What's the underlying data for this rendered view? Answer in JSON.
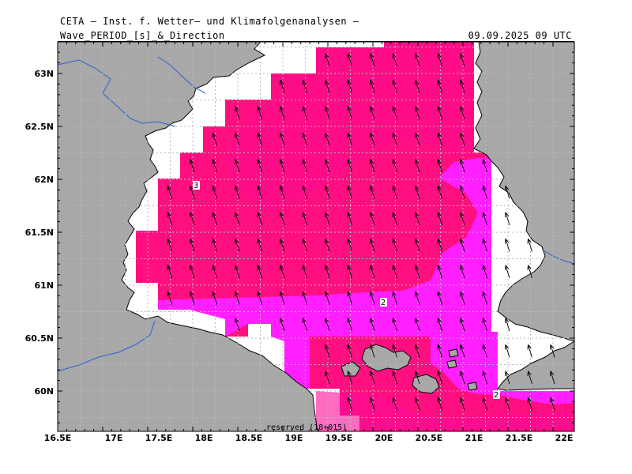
{
  "header": {
    "title": "CETA — Inst. f. Wetter— und Klimafolgenanalysen —",
    "parameter": "Wave_PERIOD_[s]_&_Direction",
    "valid_time": "09.09.2025 09 UTC"
  },
  "map": {
    "region": "Gulf of Bothnia",
    "lon_ticks": [
      "16.5E",
      "17E",
      "17.5E",
      "18E",
      "18.5E",
      "19E",
      "19.5E",
      "20E",
      "20.5E",
      "21E",
      "21.5E",
      "22E"
    ],
    "lat_ticks": [
      "63N",
      "62.5N",
      "62N",
      "61.5N",
      "61N",
      "60.5N",
      "60N"
    ],
    "contour_labels": [
      "3",
      "2",
      "2"
    ],
    "footer": "reserved (18+015)",
    "colors": {
      "land": "#a8a8a8",
      "period_3s": "#ff0f7f",
      "period_3s_high": "#ff0a9a",
      "period_2s": "#ff1fff",
      "sea_nodata": "#ffffff",
      "borders": "#2f5fd0",
      "grid": "#b0b0b0"
    },
    "arrows": "wave direction arrows pointing NNW (from SSE)"
  }
}
